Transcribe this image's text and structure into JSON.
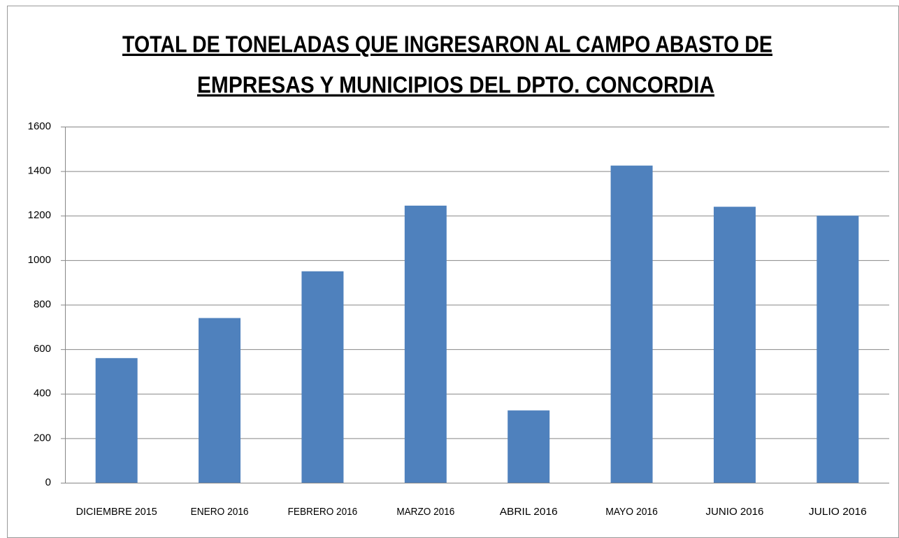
{
  "chart_data": {
    "type": "bar",
    "title": [
      "TOTAL DE TONELADAS QUE INGRESARON AL CAMPO ABASTO DE",
      "EMPRESAS Y MUNICIPIOS DEL DPTO. CONCORDIA"
    ],
    "categories": [
      "DICIEMBRE 2015",
      "ENERO 2016",
      "FEBRERO 2016",
      "MARZO 2016",
      "ABRIL 2016",
      "MAYO 2016",
      "JUNIO 2016",
      "JULIO 2016"
    ],
    "values": [
      560,
      740,
      950,
      1245,
      325,
      1425,
      1240,
      1200
    ],
    "color": "#4f81bd",
    "ylim": [
      0,
      1600
    ],
    "yticks": [
      0,
      200,
      400,
      600,
      800,
      1000,
      1200,
      1400,
      1600
    ],
    "grid": true
  }
}
